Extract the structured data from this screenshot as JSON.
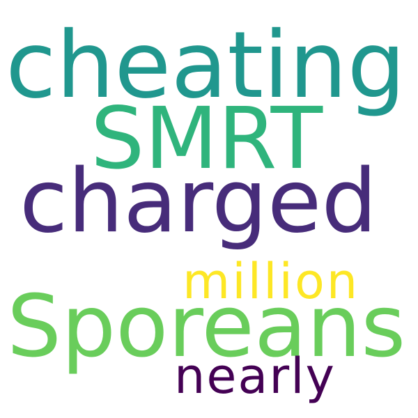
{
  "words": [
    {
      "text": "cheating",
      "color": "#20978e"
    },
    {
      "text": "SMRT",
      "color": "#2fb47c"
    },
    {
      "text": "charged",
      "color": "#472c7a"
    },
    {
      "text": "million",
      "color": "#fde725"
    },
    {
      "text": "Sporeans",
      "color": "#69cd5b"
    },
    {
      "text": "nearly",
      "color": "#440154"
    }
  ]
}
